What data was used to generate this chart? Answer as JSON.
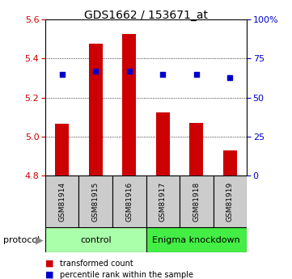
{
  "title": "GDS1662 / 153671_at",
  "samples": [
    "GSM81914",
    "GSM81915",
    "GSM81916",
    "GSM81917",
    "GSM81918",
    "GSM81919"
  ],
  "bar_values": [
    5.065,
    5.475,
    5.525,
    5.125,
    5.07,
    4.93
  ],
  "bar_base": 4.8,
  "bar_color": "#cc0000",
  "dot_values_pct": [
    65,
    67,
    67,
    65,
    65,
    63
  ],
  "dot_color": "#0000cc",
  "ylim_left": [
    4.8,
    5.6
  ],
  "ylim_right": [
    0,
    100
  ],
  "yticks_left": [
    4.8,
    5.0,
    5.2,
    5.4,
    5.6
  ],
  "yticks_right": [
    0,
    25,
    50,
    75,
    100
  ],
  "ytick_labels_right": [
    "0",
    "25",
    "50",
    "75",
    "100%"
  ],
  "groups": [
    {
      "label": "control",
      "color": "#aaffaa",
      "start": 0,
      "end": 3
    },
    {
      "label": "Enigma knockdown",
      "color": "#44ee44",
      "start": 3,
      "end": 6
    }
  ],
  "protocol_label": "protocol",
  "legend_items": [
    {
      "label": "transformed count",
      "color": "#cc0000"
    },
    {
      "label": "percentile rank within the sample",
      "color": "#0000cc"
    }
  ],
  "left_ycolor": "#cc0000",
  "right_ycolor": "#0000cc",
  "sample_box_color": "#cccccc",
  "bar_width": 0.4
}
